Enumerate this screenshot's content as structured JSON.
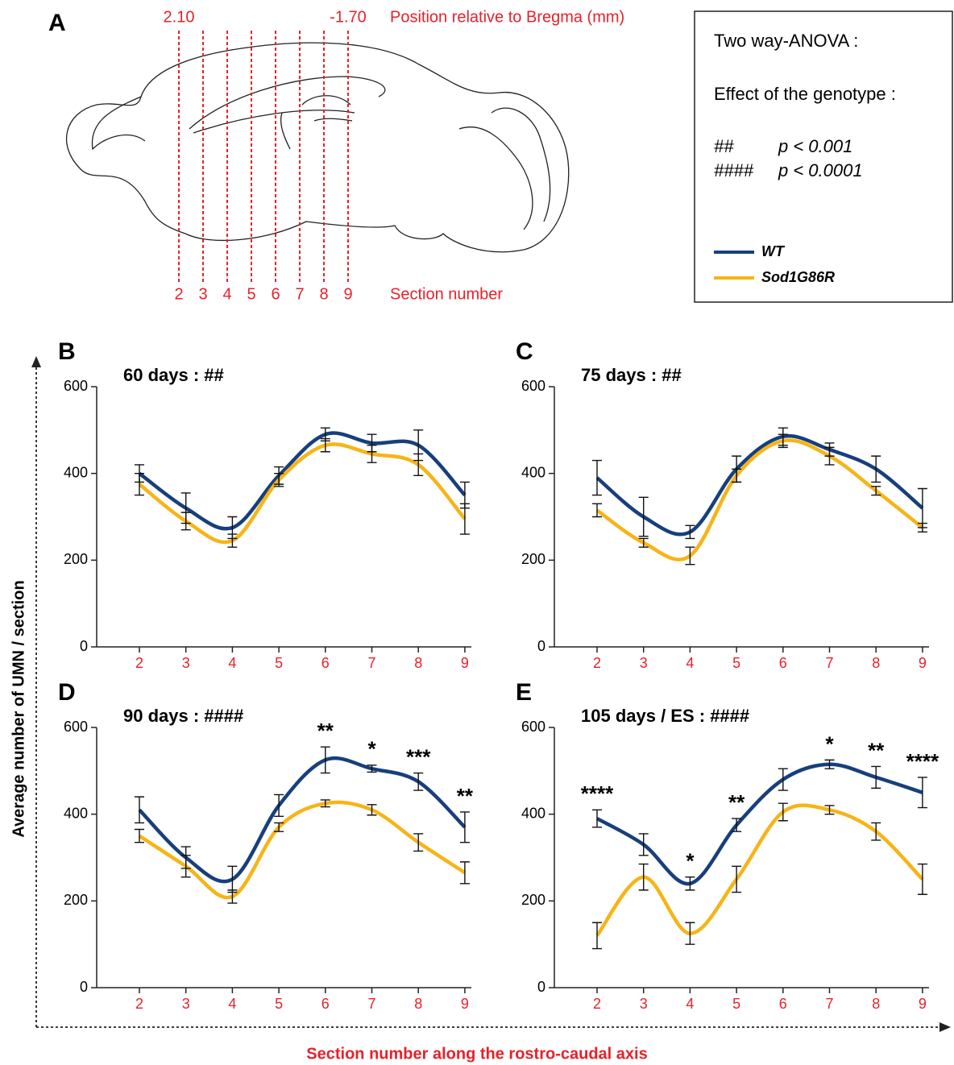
{
  "panel_a": {
    "label": "A",
    "positions": [
      "2.10",
      "-1.70"
    ],
    "position_title": "Position relative to Bregma (mm)",
    "sections": [
      "2",
      "3",
      "4",
      "5",
      "6",
      "7",
      "8",
      "9"
    ],
    "section_title": "Section number"
  },
  "stats_box": {
    "title": "Two way-ANOVA :",
    "subtitle": "Effect of the genotype :",
    "thresholds": [
      {
        "symbol": "##",
        "p": "p < 0.001"
      },
      {
        "symbol": "####",
        "p": "p < 0.0001"
      }
    ]
  },
  "y_label": "Average number of UMN / section",
  "x_label": "Section number along the rostro-caudal axis",
  "chart_data": [
    {
      "type": "line",
      "panel": "B",
      "title": "60 days : ##",
      "categories": [
        "2",
        "3",
        "4",
        "5",
        "6",
        "7",
        "8",
        "9"
      ],
      "ylim": [
        0,
        600
      ],
      "yticks": [
        0,
        200,
        400,
        600
      ],
      "series": [
        {
          "name": "WT",
          "color": "#173f7c",
          "values": [
            400,
            320,
            275,
            395,
            490,
            470,
            465,
            350
          ],
          "errors": [
            20,
            35,
            25,
            20,
            15,
            20,
            35,
            30
          ]
        },
        {
          "name": "Sod1G86R",
          "color": "#f7b417",
          "values": [
            375,
            290,
            245,
            385,
            465,
            445,
            420,
            295
          ],
          "errors": [
            25,
            20,
            15,
            15,
            15,
            20,
            25,
            35
          ]
        }
      ],
      "annotations": [
        null,
        null,
        null,
        null,
        null,
        null,
        null,
        null
      ]
    },
    {
      "type": "line",
      "panel": "C",
      "title": "75 days : ##",
      "categories": [
        "2",
        "3",
        "4",
        "5",
        "6",
        "7",
        "8",
        "9"
      ],
      "ylim": [
        0,
        600
      ],
      "yticks": [
        0,
        200,
        400,
        600
      ],
      "series": [
        {
          "name": "WT",
          "color": "#173f7c",
          "values": [
            390,
            300,
            265,
            410,
            485,
            455,
            410,
            320
          ],
          "errors": [
            40,
            45,
            15,
            30,
            20,
            15,
            30,
            45
          ]
        },
        {
          "name": "Sod1G86R",
          "color": "#f7b417",
          "values": [
            315,
            240,
            210,
            395,
            475,
            440,
            360,
            275
          ],
          "errors": [
            15,
            10,
            20,
            15,
            15,
            20,
            10,
            10
          ]
        }
      ],
      "annotations": [
        null,
        null,
        null,
        null,
        null,
        null,
        null,
        null
      ]
    },
    {
      "type": "line",
      "panel": "D",
      "title": "90 days : ####",
      "categories": [
        "2",
        "3",
        "4",
        "5",
        "6",
        "7",
        "8",
        "9"
      ],
      "ylim": [
        0,
        600
      ],
      "yticks": [
        0,
        200,
        400,
        600
      ],
      "series": [
        {
          "name": "WT",
          "color": "#173f7c",
          "values": [
            410,
            300,
            250,
            420,
            525,
            505,
            475,
            370
          ],
          "errors": [
            30,
            25,
            30,
            25,
            30,
            8,
            20,
            35
          ]
        },
        {
          "name": "Sod1G86R",
          "color": "#f7b417",
          "values": [
            350,
            280,
            210,
            370,
            425,
            410,
            335,
            265
          ],
          "errors": [
            15,
            25,
            15,
            10,
            8,
            12,
            20,
            25
          ]
        }
      ],
      "annotations": [
        null,
        null,
        null,
        null,
        "**",
        "*",
        "***",
        "**"
      ]
    },
    {
      "type": "line",
      "panel": "E",
      "title": "105 days / ES : ####",
      "categories": [
        "2",
        "3",
        "4",
        "5",
        "6",
        "7",
        "8",
        "9"
      ],
      "ylim": [
        0,
        600
      ],
      "yticks": [
        0,
        200,
        400,
        600
      ],
      "series": [
        {
          "name": "WT",
          "color": "#173f7c",
          "values": [
            390,
            330,
            240,
            375,
            480,
            515,
            485,
            450
          ],
          "errors": [
            20,
            25,
            15,
            15,
            25,
            10,
            25,
            35
          ]
        },
        {
          "name": "Sod1G86R",
          "color": "#f7b417",
          "values": [
            120,
            255,
            125,
            250,
            405,
            410,
            360,
            250
          ],
          "errors": [
            30,
            30,
            25,
            30,
            20,
            10,
            20,
            35
          ]
        }
      ],
      "annotations": [
        "****",
        null,
        "*",
        "**",
        null,
        "*",
        "**",
        "****"
      ]
    }
  ]
}
